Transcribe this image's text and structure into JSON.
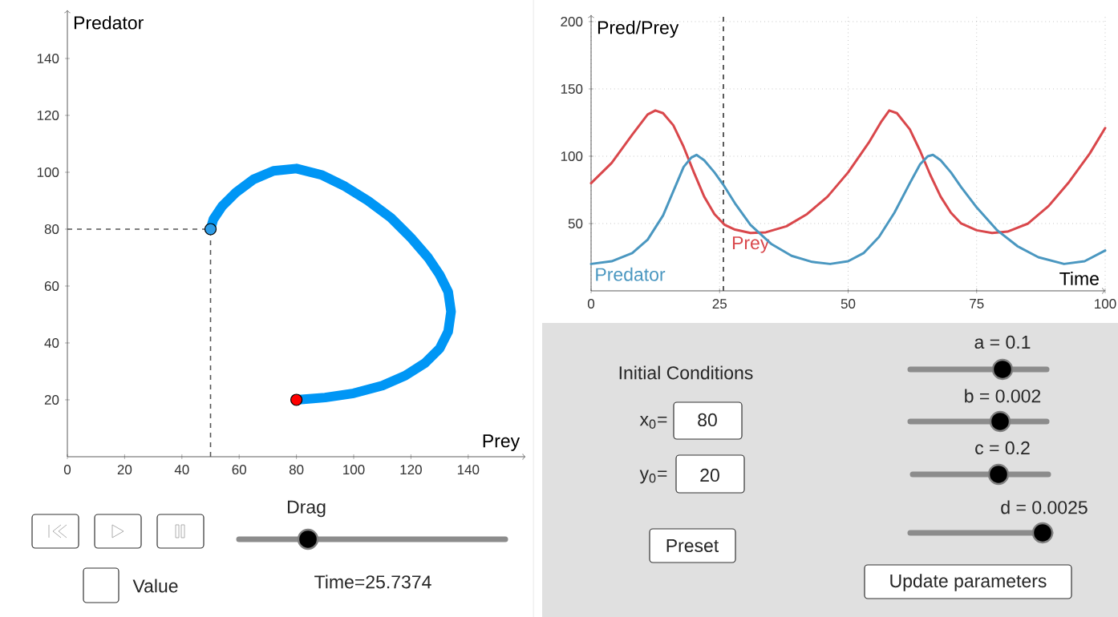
{
  "chart_data": [
    {
      "type": "line",
      "xlabel": "Prey",
      "ylabel": "Predator",
      "xlim": [
        0,
        160
      ],
      "ylim": [
        0,
        157
      ],
      "xticks": [
        0,
        20,
        40,
        60,
        80,
        100,
        120,
        140
      ],
      "yticks": [
        20,
        40,
        60,
        80,
        100,
        120,
        140
      ],
      "series": [
        {
          "color": "#0096f5",
          "x": [
            80,
            90,
            100,
            110,
            118,
            125,
            130,
            133,
            134,
            133,
            130,
            126,
            120,
            113,
            105,
            97,
            89,
            80,
            72,
            65,
            59,
            54,
            51,
            50
          ],
          "values": [
            20,
            20.8,
            22.3,
            25,
            28.5,
            33,
            38,
            44,
            51,
            58,
            64,
            70,
            77,
            84,
            90,
            95,
            99,
            101.3,
            100.5,
            97.5,
            93,
            88,
            83.5,
            80
          ]
        },
        {
          "type": "scatter",
          "marker": "circle",
          "color": "#ff0000",
          "x": [
            80
          ],
          "values": [
            20
          ]
        },
        {
          "type": "scatter",
          "marker": "circle",
          "color": "#2f9de8",
          "x": [
            50
          ],
          "values": [
            80
          ]
        }
      ],
      "ref_lines": [
        {
          "axis": "x",
          "value": 50,
          "color": "#555555",
          "line_style": "dashed"
        },
        {
          "axis": "y",
          "value": 80,
          "color": "#555555",
          "line_style": "dashed"
        }
      ]
    },
    {
      "type": "line",
      "xlabel": "Time",
      "ylabel": "Pred/Prey",
      "xlim": [
        0,
        100
      ],
      "ylim": [
        0,
        205
      ],
      "xticks": [
        0,
        25,
        50,
        75,
        100
      ],
      "yticks": [
        50,
        100,
        150,
        200
      ],
      "grid": true,
      "series": [
        {
          "name": "Prey",
          "color": "#d9474b",
          "x": [
            0,
            4,
            8,
            11,
            12.5,
            14,
            16,
            18,
            20,
            22,
            24,
            26,
            28,
            31,
            34,
            38,
            42,
            46,
            50,
            54,
            56.5,
            58,
            59.5,
            62,
            64,
            66,
            68,
            70,
            72,
            75,
            78,
            81,
            85,
            89,
            93,
            97,
            100
          ],
          "values": [
            80,
            95,
            116,
            131,
            134,
            132,
            123,
            107,
            88,
            70,
            57,
            49,
            45.5,
            43,
            43.5,
            48,
            57,
            70,
            88,
            110,
            126,
            134,
            132,
            120,
            104,
            86,
            70,
            58,
            50,
            45,
            43,
            44,
            50,
            63,
            81,
            102,
            121
          ]
        },
        {
          "name": "Predator",
          "color": "#4a97c0",
          "x": [
            0,
            4,
            8,
            11,
            14,
            16,
            18,
            19.5,
            20.5,
            22,
            24,
            25.7,
            28,
            31,
            35,
            39,
            43,
            46.5,
            50,
            53,
            56,
            59,
            62,
            64,
            65.5,
            66.5,
            68,
            70,
            72,
            75,
            79,
            83,
            87,
            92,
            96,
            100
          ],
          "values": [
            20,
            22,
            28,
            38,
            56,
            74,
            92,
            99,
            101,
            97,
            88,
            79,
            65,
            49,
            35,
            26,
            21.5,
            20,
            22,
            28,
            40,
            58,
            80,
            94,
            100,
            101,
            97,
            88,
            77,
            62,
            45,
            33,
            25,
            20,
            22,
            30
          ]
        }
      ],
      "ref_lines": [
        {
          "axis": "x",
          "value": 25.7374,
          "color": "#333333",
          "line_style": "dashed"
        }
      ]
    },
    {
      "type": "other",
      "annotations": [
        "Drag",
        "Value",
        "Time=25.7374",
        "Initial Conditions",
        "x$_{0}$=",
        "80",
        "y$_{0}$=",
        "20",
        "a = 0.1",
        "b = 0.002",
        "c = 0.2",
        "d = 0.0025",
        "Preset",
        "Update parameters"
      ]
    }
  ]
}
